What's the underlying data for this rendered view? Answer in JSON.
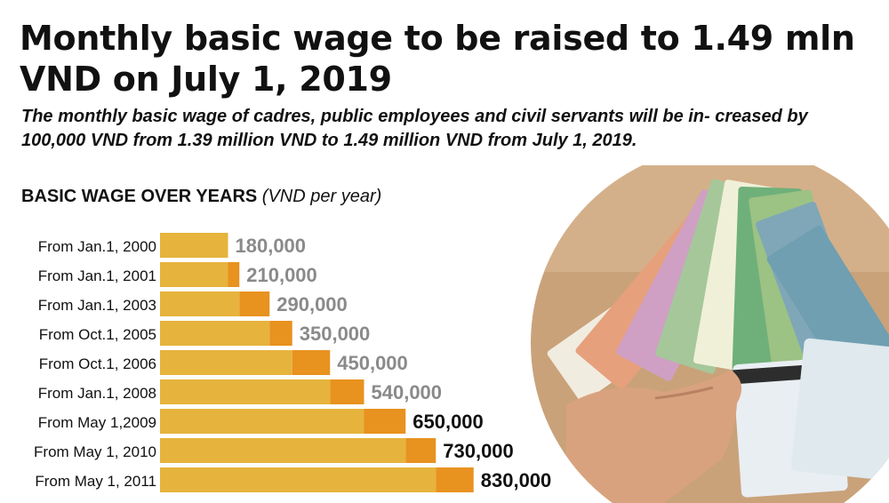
{
  "title": "Monthly basic wage to be raised to 1.49 mln VND on July 1, 2019",
  "subtitle": "The monthly basic wage of cadres, public employees and civil servants will be in- creased by 100,000 VND from 1.39 million VND to 1.49 million VND from July 1, 2019.",
  "chart_heading": {
    "label": "BASIC WAGE OVER YEARS",
    "unit": "(VND per year)"
  },
  "colors": {
    "bar_base": "#E6B33C",
    "bar_increase": "#E8921F",
    "value_muted": "#8a8a8a",
    "value_strong": "#111111"
  },
  "chart_data": {
    "type": "bar",
    "orientation": "horizontal",
    "title": "BASIC WAGE OVER YEARS",
    "unit": "(VND per year)",
    "categories": [
      "From Jan.1, 2000",
      "From Jan.1, 2001",
      "From Jan.1, 2003",
      "From Oct.1, 2005",
      "From Oct.1, 2006",
      "From Jan.1, 2008",
      "From May 1,2009",
      "From May 1, 2010",
      "From May 1, 2011"
    ],
    "values": [
      180000,
      210000,
      290000,
      350000,
      450000,
      540000,
      650000,
      730000,
      830000
    ],
    "value_labels": [
      "180,000",
      "210,000",
      "290,000",
      "350,000",
      "450,000",
      "540,000",
      "650,000",
      "730,000",
      "830,000"
    ],
    "label_emphasis": [
      false,
      false,
      false,
      false,
      false,
      false,
      true,
      true,
      true
    ],
    "legend": "none",
    "grid": false
  },
  "photo": {
    "description_icon": "banknotes-in-hand-photo"
  }
}
